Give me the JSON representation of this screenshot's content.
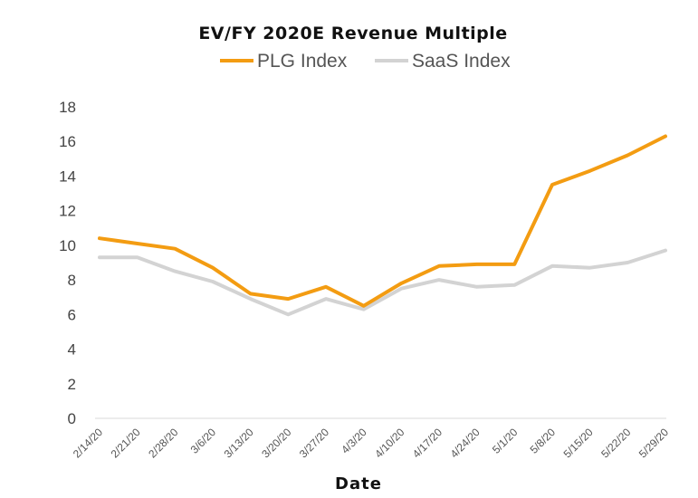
{
  "chart_data": {
    "type": "line",
    "title": "EV/FY 2020E Revenue Multiple",
    "xlabel": "Date",
    "ylabel": "",
    "ylim": [
      0,
      18
    ],
    "yticks": [
      0,
      2,
      4,
      6,
      8,
      10,
      12,
      14,
      16,
      18
    ],
    "legend_position": "top-center",
    "grid": false,
    "x": [
      "2/14/20",
      "2/21/20",
      "2/28/20",
      "3/6/20",
      "3/13/20",
      "3/20/20",
      "3/27/20",
      "4/3/20",
      "4/10/20",
      "4/17/20",
      "4/24/20",
      "5/1/20",
      "5/8/20",
      "5/15/20",
      "5/22/20",
      "5/29/20"
    ],
    "series": [
      {
        "name": "PLG Index",
        "color": "#F39C12",
        "values": [
          10.4,
          10.1,
          9.8,
          8.7,
          7.2,
          6.9,
          7.6,
          6.5,
          7.8,
          8.8,
          8.9,
          8.9,
          13.5,
          14.3,
          15.2,
          16.3
        ]
      },
      {
        "name": "SaaS Index",
        "color": "#D3D3D3",
        "values": [
          9.3,
          9.3,
          8.5,
          7.9,
          6.9,
          6.0,
          6.9,
          6.3,
          7.5,
          8.0,
          7.6,
          7.7,
          8.8,
          8.7,
          9.0,
          9.7
        ]
      }
    ]
  }
}
